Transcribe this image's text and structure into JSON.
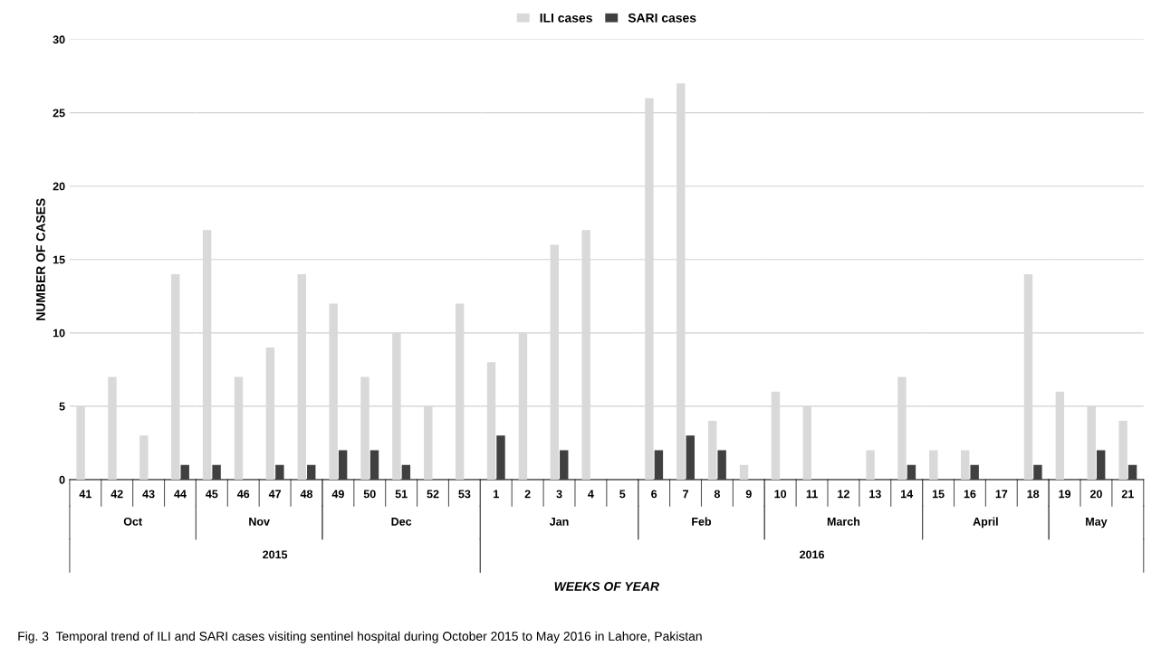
{
  "chart_data": [
    {
      "type": "bar",
      "categories": [
        "41",
        "42",
        "43",
        "44"
      ],
      "xlabel": "Oct",
      "ylabel": "NUMBER OF CASES",
      "series": [
        {
          "name": "ILI cases",
          "color": "#d9d9d9",
          "values": [
            5,
            7,
            3,
            14
          ]
        },
        {
          "name": "SARI cases",
          "color": "#404040",
          "values": [
            0,
            0,
            0,
            1
          ]
        }
      ],
      "ylim": [
        0,
        30
      ],
      "yticks": [
        0,
        5,
        10,
        15,
        20,
        25,
        30
      ],
      "grid": "y",
      "legend": "top",
      "annotations": [
        "2015",
        "WEEKS OF YEAR",
        "Fig. 3  Temporal trend of ILI and SARI cases visiting sentinel hospital during October 2015 to May 2016 in Lahore, Pakistan"
      ]
    },
    {
      "type": "bar",
      "categories": [
        "45",
        "46",
        "47",
        "48"
      ],
      "xlabel": "Nov",
      "series": [
        {
          "color": "#d9d9d9",
          "values": [
            17,
            7,
            9,
            14
          ]
        },
        {
          "color": "#404040",
          "values": [
            1,
            0,
            1,
            1
          ]
        }
      ],
      "ylim": [
        0,
        30
      ],
      "yticks": [
        0,
        5,
        10,
        15,
        20,
        25,
        30
      ],
      "grid": "y",
      "tick_labels": "x"
    },
    {
      "type": "bar",
      "categories": [
        "49",
        "50",
        "51",
        "52",
        "53"
      ],
      "xlabel": "Dec",
      "series": [
        {
          "color": "#d9d9d9",
          "values": [
            12,
            7,
            10,
            5,
            12
          ]
        },
        {
          "color": "#404040",
          "values": [
            2,
            2,
            1,
            0,
            0
          ]
        }
      ],
      "ylim": [
        0,
        30
      ],
      "yticks": [
        0,
        5,
        10,
        15,
        20,
        25,
        30
      ],
      "grid": "y",
      "tick_labels": "x"
    },
    {
      "type": "bar",
      "categories": [
        "1",
        "2",
        "3",
        "4",
        "5"
      ],
      "xlabel": "Jan",
      "series": [
        {
          "color": "#d9d9d9",
          "values": [
            8,
            10,
            16,
            17,
            0
          ]
        },
        {
          "color": "#404040",
          "values": [
            3,
            0,
            2,
            0,
            0
          ]
        }
      ],
      "ylim": [
        0,
        30
      ],
      "yticks": [
        0,
        5,
        10,
        15,
        20,
        25,
        30
      ],
      "grid": "y",
      "tick_labels": "x",
      "annotations": [
        "2016"
      ]
    },
    {
      "type": "bar",
      "categories": [
        "6",
        "7",
        "8",
        "9"
      ],
      "xlabel": "Feb",
      "series": [
        {
          "color": "#d9d9d9",
          "values": [
            26,
            27,
            4,
            1
          ]
        },
        {
          "color": "#404040",
          "values": [
            2,
            3,
            2,
            0
          ]
        }
      ],
      "ylim": [
        0,
        30
      ],
      "yticks": [
        0,
        5,
        10,
        15,
        20,
        25,
        30
      ],
      "grid": "y",
      "tick_labels": "x"
    },
    {
      "type": "bar",
      "categories": [
        "10",
        "11",
        "12",
        "13",
        "14"
      ],
      "xlabel": "March",
      "series": [
        {
          "color": "#d9d9d9",
          "values": [
            6,
            5,
            0,
            2,
            7
          ]
        },
        {
          "color": "#404040",
          "values": [
            0,
            0,
            0,
            0,
            1
          ]
        }
      ],
      "ylim": [
        0,
        30
      ],
      "yticks": [
        0,
        5,
        10,
        15,
        20,
        25,
        30
      ],
      "grid": "y",
      "tick_labels": "x"
    },
    {
      "type": "bar",
      "categories": [
        "15",
        "16",
        "17",
        "18"
      ],
      "xlabel": "April",
      "series": [
        {
          "color": "#d9d9d9",
          "values": [
            2,
            2,
            0,
            14
          ]
        },
        {
          "color": "#404040",
          "values": [
            0,
            1,
            0,
            1
          ]
        }
      ],
      "ylim": [
        0,
        30
      ],
      "yticks": [
        0,
        5,
        10,
        15,
        20,
        25,
        30
      ],
      "grid": "y",
      "tick_labels": "x"
    },
    {
      "type": "bar",
      "categories": [
        "19",
        "20",
        "21"
      ],
      "xlabel": "May",
      "series": [
        {
          "color": "#d9d9d9",
          "values": [
            6,
            5,
            4
          ]
        },
        {
          "color": "#404040",
          "values": [
            0,
            2,
            1
          ]
        }
      ],
      "ylim": [
        0,
        30
      ],
      "yticks": [
        0,
        5,
        10,
        15,
        20,
        25,
        30
      ],
      "grid": "y",
      "tick_labels": "x"
    }
  ]
}
